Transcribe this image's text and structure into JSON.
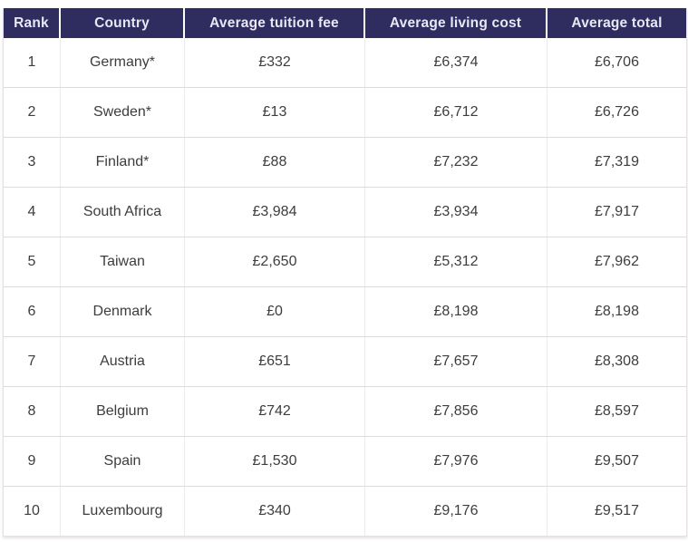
{
  "table": {
    "columns": [
      "Rank",
      "Country",
      "Average tuition fee",
      "Average living cost",
      "Average total"
    ],
    "rows": [
      {
        "rank": "1",
        "country": "Germany*",
        "tuition": "£332",
        "living": "£6,374",
        "total": "£6,706"
      },
      {
        "rank": "2",
        "country": "Sweden*",
        "tuition": "£13",
        "living": "£6,712",
        "total": "£6,726"
      },
      {
        "rank": "3",
        "country": "Finland*",
        "tuition": "£88",
        "living": "£7,232",
        "total": "£7,319"
      },
      {
        "rank": "4",
        "country": "South Africa",
        "tuition": "£3,984",
        "living": "£3,934",
        "total": "£7,917"
      },
      {
        "rank": "5",
        "country": "Taiwan",
        "tuition": "£2,650",
        "living": "£5,312",
        "total": "£7,962"
      },
      {
        "rank": "6",
        "country": "Denmark",
        "tuition": "£0",
        "living": "£8,198",
        "total": "£8,198"
      },
      {
        "rank": "7",
        "country": "Austria",
        "tuition": "£651",
        "living": "£7,657",
        "total": "£8,308"
      },
      {
        "rank": "8",
        "country": "Belgium",
        "tuition": "£742",
        "living": "£7,856",
        "total": "£8,597"
      },
      {
        "rank": "9",
        "country": "Spain",
        "tuition": "£1,530",
        "living": "£7,976",
        "total": "£9,507"
      },
      {
        "rank": "10",
        "country": "Luxembourg",
        "tuition": "£340",
        "living": "£9,176",
        "total": "£9,517"
      }
    ],
    "colors": {
      "header_background": "#2f2d60",
      "header_text": "#e9e8f2",
      "body_text": "#3d3d3d",
      "row_divider": "#dcdcdc",
      "column_divider": "#ebebeb"
    }
  },
  "chart_data": {
    "type": "table",
    "title": "",
    "columns": [
      "Rank",
      "Country",
      "Average tuition fee",
      "Average living cost",
      "Average total"
    ],
    "rows": [
      [
        "1",
        "Germany*",
        "£332",
        "£6,374",
        "£6,706"
      ],
      [
        "2",
        "Sweden*",
        "£13",
        "£6,712",
        "£6,726"
      ],
      [
        "3",
        "Finland*",
        "£88",
        "£7,232",
        "£7,319"
      ],
      [
        "4",
        "South Africa",
        "£3,984",
        "£3,934",
        "£7,917"
      ],
      [
        "5",
        "Taiwan",
        "£2,650",
        "£5,312",
        "£7,962"
      ],
      [
        "6",
        "Denmark",
        "£0",
        "£8,198",
        "£8,198"
      ],
      [
        "7",
        "Austria",
        "£651",
        "£7,657",
        "£8,308"
      ],
      [
        "8",
        "Belgium",
        "£742",
        "£7,856",
        "£8,597"
      ],
      [
        "9",
        "Spain",
        "£1,530",
        "£7,976",
        "£9,507"
      ],
      [
        "10",
        "Luxembourg",
        "£340",
        "£9,176",
        "£9,517"
      ]
    ],
    "currency": "GBP",
    "numeric_values": {
      "tuition": [
        332,
        13,
        88,
        3984,
        2650,
        0,
        651,
        742,
        1530,
        340
      ],
      "living": [
        6374,
        6712,
        7232,
        3934,
        5312,
        8198,
        7657,
        7856,
        7976,
        9176
      ],
      "total": [
        6706,
        6726,
        7319,
        7917,
        7962,
        8198,
        8308,
        8597,
        9507,
        9517
      ]
    }
  }
}
